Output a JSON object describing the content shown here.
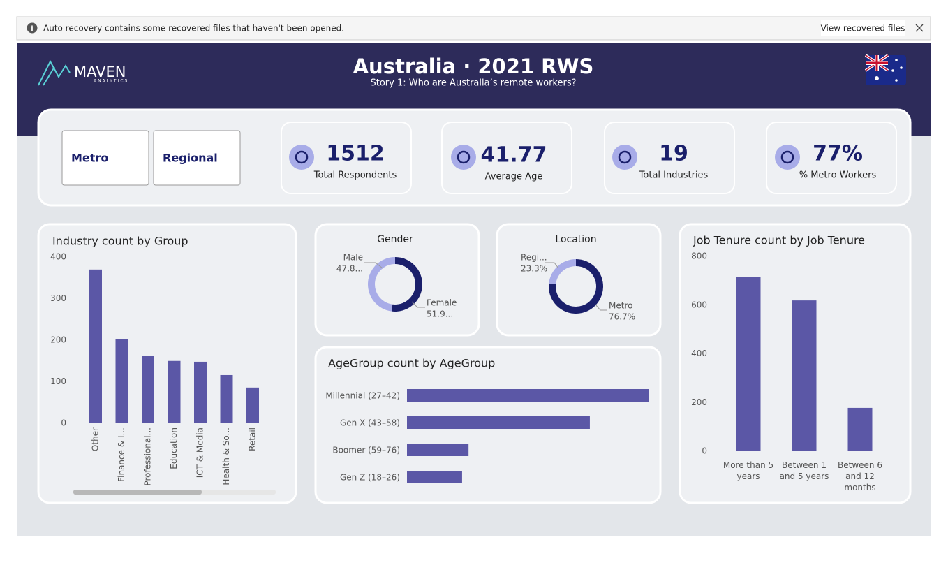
{
  "notification": {
    "message": "Auto recovery contains some recovered files that haven't been opened.",
    "button": "View recovered files"
  },
  "header": {
    "logo": "MAVEN",
    "logo_sub": "ANALYTICS",
    "title": "Australia · 2021 RWS",
    "subtitle": "Story 1: Who are Australia’s remote workers?"
  },
  "filters": [
    "Metro",
    "Regional"
  ],
  "kpis": [
    {
      "value": "1512",
      "label": "Total Respondents"
    },
    {
      "value": "41.77",
      "label": "Average Age"
    },
    {
      "value": "19",
      "label": "Total Industries"
    },
    {
      "value": "77%",
      "label": "% Metro Workers"
    }
  ],
  "chart_data": [
    {
      "type": "bar",
      "title": "Industry count by Group",
      "categories": [
        "Other",
        "Finance & I...",
        "Professional...",
        "Education",
        "ICT & Media",
        "Health & So...",
        "Retail"
      ],
      "values": [
        370,
        203,
        163,
        150,
        148,
        116,
        86
      ],
      "color": "#5b57a6",
      "ylim": [
        0,
        400
      ],
      "yticks": [
        0,
        100,
        200,
        300,
        400
      ]
    },
    {
      "type": "donut",
      "title": "Gender",
      "categories": [
        "Male",
        "Female"
      ],
      "values": [
        47.8,
        51.9
      ],
      "value_labels": [
        "47.8...",
        "51.9..."
      ],
      "colors": [
        "#a8ace8",
        "#1a1f6b"
      ]
    },
    {
      "type": "donut",
      "title": "Location",
      "categories": [
        "Regi...",
        "Metro"
      ],
      "values": [
        23.3,
        76.7
      ],
      "value_labels": [
        "23.3%",
        "76.7%"
      ],
      "colors": [
        "#a8ace8",
        "#1a1f6b"
      ]
    },
    {
      "type": "hbar",
      "title": "AgeGroup count by AgeGroup",
      "categories": [
        "Millennial (27–42)",
        "Gen X (43–58)",
        "Boomer (59–76)",
        "Gen Z (18–26)"
      ],
      "values": [
        675,
        511,
        172,
        154
      ],
      "color": "#5b57a6"
    },
    {
      "type": "bar",
      "title": "Job Tenure count by Job Tenure",
      "categories": [
        "More than 5 years",
        "Between 1 and 5 years",
        "Between 6 and 12 months"
      ],
      "values": [
        715,
        619,
        178
      ],
      "color": "#5b57a6",
      "ylim": [
        0,
        800
      ],
      "yticks": [
        0,
        200,
        400,
        600,
        800
      ]
    }
  ]
}
